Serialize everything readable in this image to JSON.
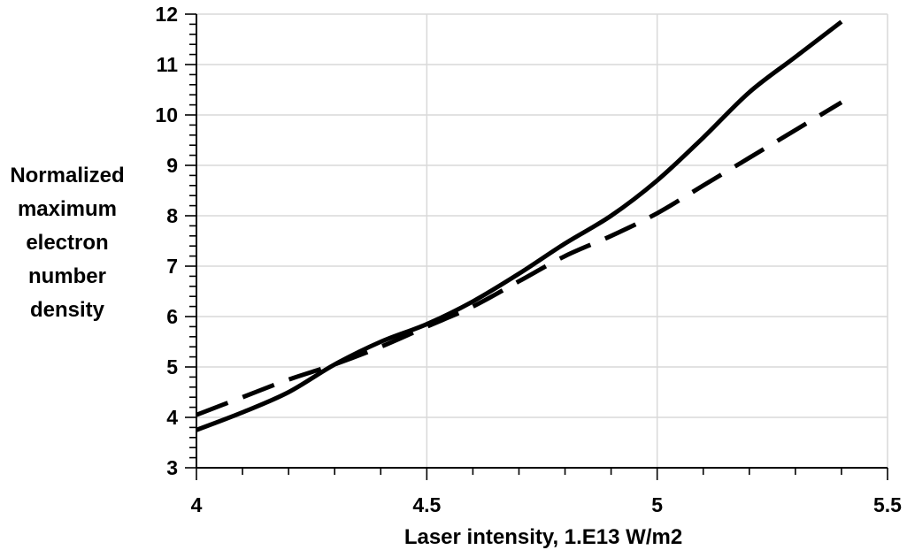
{
  "chart_data": {
    "type": "line",
    "title": "",
    "xlabel": "Laser intensity, 1.E13 W/m2",
    "ylabel_lines": [
      "Normalized",
      "maximum",
      "electron",
      "number",
      "density"
    ],
    "xlim": [
      4,
      5.5
    ],
    "ylim": [
      3,
      12
    ],
    "xticks": [
      4,
      4.5,
      5,
      5.5
    ],
    "xtick_labels": [
      "4",
      "4.5",
      "5",
      "5.5"
    ],
    "xminor_step": 0.1,
    "yticks": [
      3,
      4,
      5,
      6,
      7,
      8,
      9,
      10,
      11,
      12
    ],
    "ytick_labels": [
      "3",
      "4",
      "5",
      "6",
      "7",
      "8",
      "9",
      "10",
      "11",
      "12"
    ],
    "yminor_step": 0.2,
    "grid": true,
    "legend": "none",
    "series": [
      {
        "style": "solid",
        "color": "#000000",
        "x": [
          4.0,
          4.1,
          4.2,
          4.3,
          4.4,
          4.5,
          4.6,
          4.7,
          4.8,
          4.9,
          5.0,
          5.1,
          5.2,
          5.3,
          5.4
        ],
        "y": [
          3.75,
          4.1,
          4.5,
          5.05,
          5.5,
          5.85,
          6.3,
          6.85,
          7.45,
          8.0,
          8.7,
          9.55,
          10.45,
          11.15,
          11.85
        ]
      },
      {
        "style": "dashed",
        "color": "#000000",
        "x": [
          4.0,
          4.1,
          4.2,
          4.3,
          4.4,
          4.5,
          4.6,
          4.7,
          4.8,
          4.9,
          5.0,
          5.1,
          5.2,
          5.3,
          5.4
        ],
        "y": [
          4.05,
          4.4,
          4.75,
          5.05,
          5.4,
          5.8,
          6.2,
          6.7,
          7.2,
          7.6,
          8.05,
          8.6,
          9.15,
          9.7,
          10.25
        ]
      }
    ]
  }
}
